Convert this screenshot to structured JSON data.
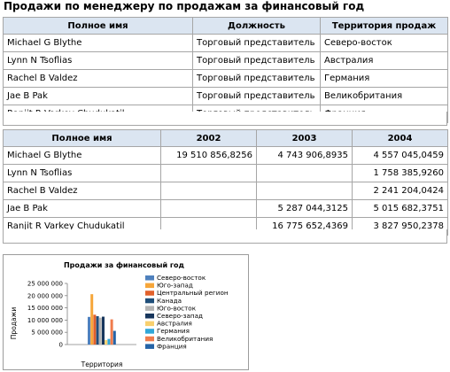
{
  "report": {
    "title": "Продажи по менеджеру по продажам за финансовый год"
  },
  "table1": {
    "headers": [
      "Полное имя",
      "Должность",
      "Территория продаж"
    ],
    "rows": [
      [
        "Michael G Blythe",
        "Торговый представитель",
        "Северо-восток"
      ],
      [
        "Lynn N Tsoflias",
        "Торговый представитель",
        "Австралия"
      ],
      [
        "Rachel B Valdez",
        "Торговый представитель",
        "Германия"
      ],
      [
        "Jae B Pak",
        "Торговый представитель",
        "Великобритания"
      ],
      [
        "Ranjit R Varkey Chudukatil",
        "Торговый представитель",
        "Франция"
      ]
    ]
  },
  "table2": {
    "headers": [
      "Полное имя",
      "2002",
      "2003",
      "2004"
    ],
    "rows": [
      [
        "Michael G Blythe",
        "19 510 856,8256",
        "4 743 906,8935",
        "4 557 045,0459"
      ],
      [
        "Lynn N Tsoflias",
        "",
        "",
        "1 758 385,9260"
      ],
      [
        "Rachel B Valdez",
        "",
        "",
        "2 241 204,0424"
      ],
      [
        "Jae B Pak",
        "",
        "5 287 044,3125",
        "5 015 682,3751"
      ],
      [
        "Ranjit R Varkey Chudukatil",
        "",
        "16 775 652,4369",
        "3 827 950,2378"
      ]
    ]
  },
  "chart_data": {
    "type": "bar",
    "title": "Продажи за финансовый год",
    "ylabel": "Продажи",
    "xlabel": "Территория",
    "ylim": [
      0,
      25000000
    ],
    "yticks": [
      "0",
      "5 000 000",
      "10 000 000",
      "15 000 000",
      "20 000 000",
      "25 000 000"
    ],
    "tick_values": [
      0,
      5000000,
      10000000,
      15000000,
      20000000,
      25000000
    ],
    "legend_position": "right",
    "series": [
      {
        "name": "Северо-восток",
        "color": "#4f81bd",
        "value": 11300000
      },
      {
        "name": "Юго-запад",
        "color": "#f6a63a",
        "value": 20600000
      },
      {
        "name": "Центральный регион",
        "color": "#e2612b",
        "value": 12200000
      },
      {
        "name": "Канада",
        "color": "#1f4e79",
        "value": 11600000
      },
      {
        "name": "Юго-восток",
        "color": "#b4b4b4",
        "value": 11000000
      },
      {
        "name": "Северо-запад",
        "color": "#17365d",
        "value": 11400000
      },
      {
        "name": "Австралия",
        "color": "#f8d06e",
        "value": 1800000
      },
      {
        "name": "Германия",
        "color": "#31a7d8",
        "value": 2300000
      },
      {
        "name": "Великобритания",
        "color": "#f07c4c",
        "value": 10300000
      },
      {
        "name": "Франция",
        "color": "#2564a7",
        "value": 5600000
      }
    ]
  }
}
